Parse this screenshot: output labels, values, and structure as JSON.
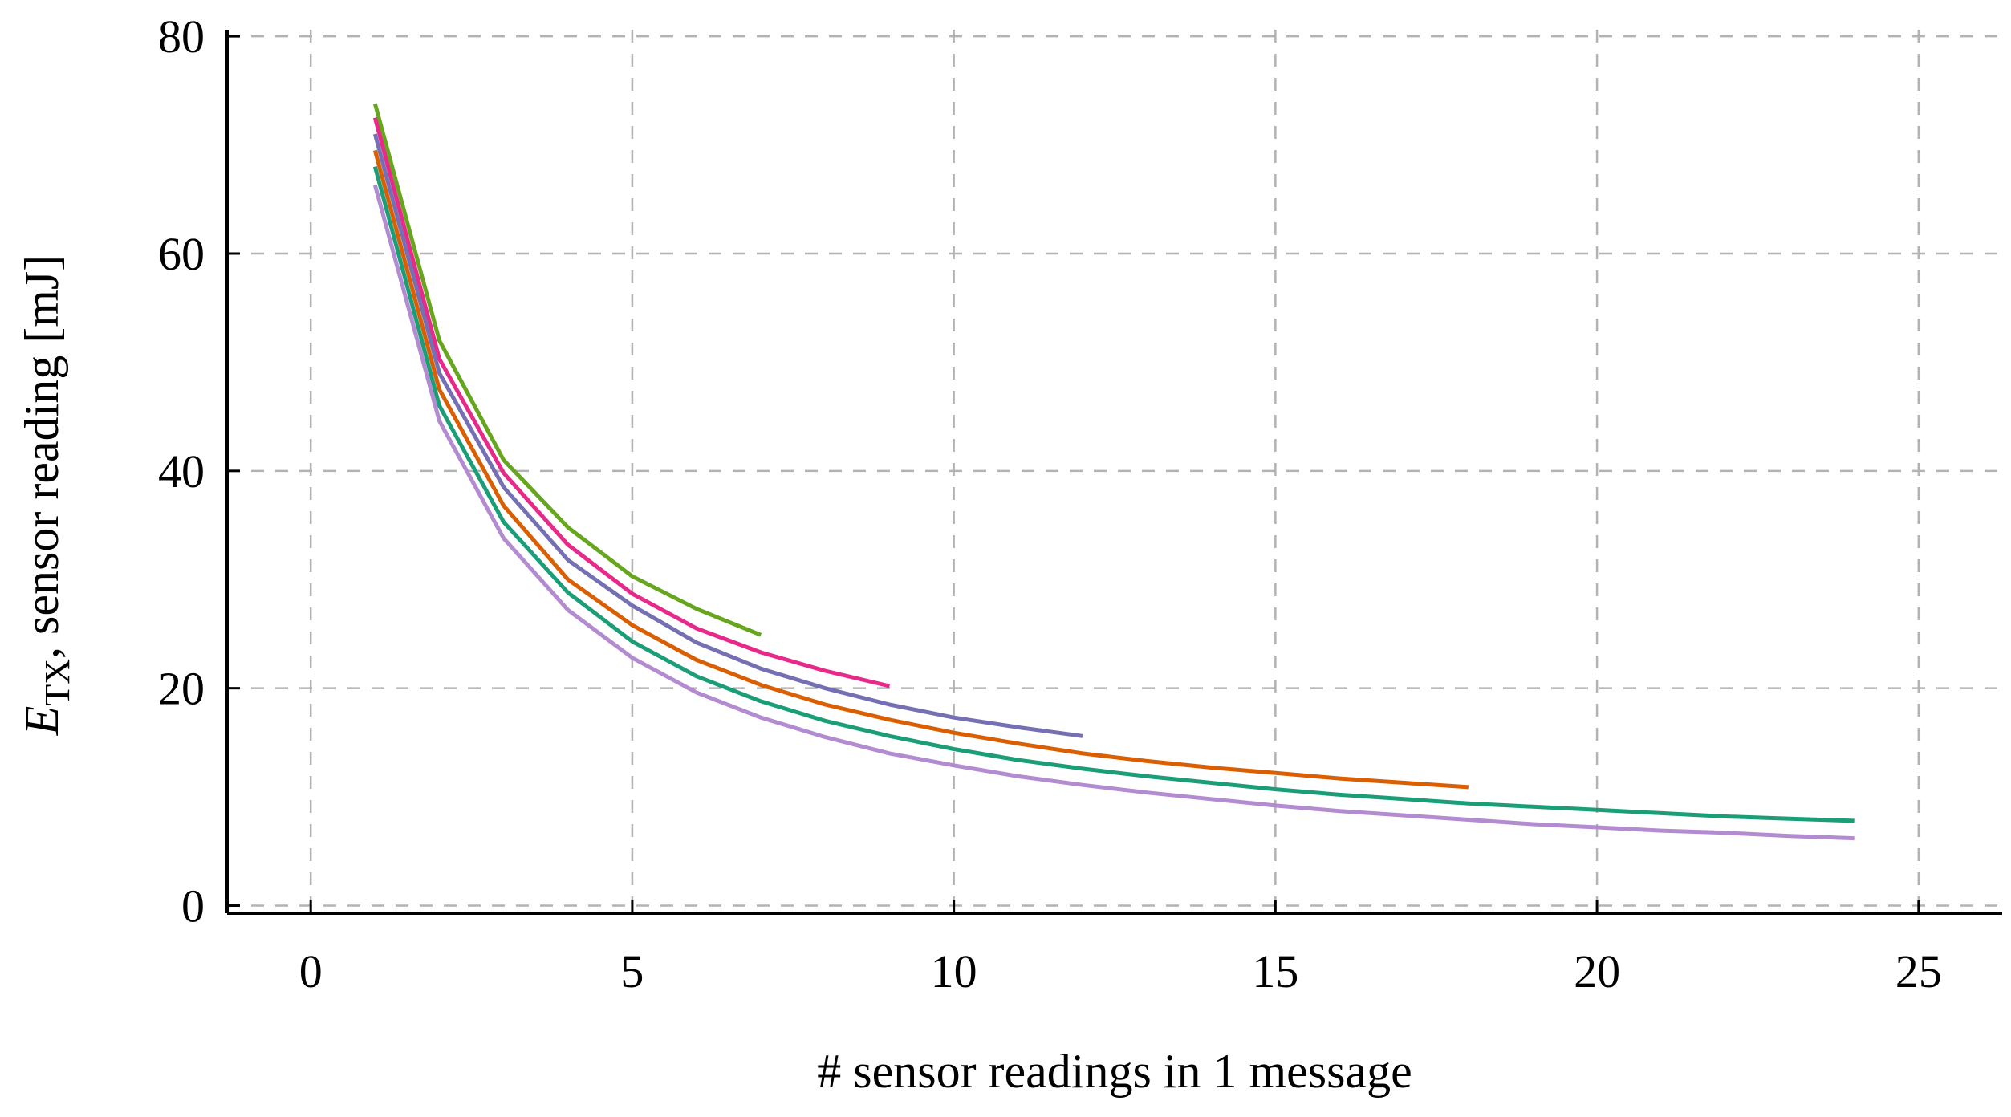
{
  "chart_data": {
    "type": "line",
    "title": "",
    "xlabel": "# sensor readings in 1 message",
    "ylabel_main": "E",
    "ylabel_sub": "TX",
    "ylabel_rest": ", sensor reading [mJ]",
    "xlim": [
      -1.3,
      26.3
    ],
    "ylim": [
      -0.7,
      80.6
    ],
    "xticks": [
      0,
      5,
      10,
      15,
      20,
      25
    ],
    "yticks": [
      0,
      20,
      40,
      60,
      80
    ],
    "grid": true,
    "legend": "none",
    "series": [
      {
        "color": "#66a61e",
        "x": [
          1,
          2,
          3,
          4,
          5,
          6,
          7
        ],
        "y": [
          73.8,
          52.0,
          41.0,
          34.8,
          30.3,
          27.3,
          24.9
        ]
      },
      {
        "color": "#e7298a",
        "x": [
          1,
          2,
          3,
          4,
          5,
          6,
          7,
          8,
          9
        ],
        "y": [
          72.5,
          50.3,
          39.8,
          33.2,
          28.7,
          25.5,
          23.3,
          21.6,
          20.2
        ]
      },
      {
        "color": "#7570b3",
        "x": [
          1,
          2,
          3,
          4,
          5,
          6,
          7,
          8,
          9,
          10,
          11,
          12
        ],
        "y": [
          71.0,
          49.0,
          38.5,
          31.8,
          27.6,
          24.2,
          21.8,
          20.0,
          18.5,
          17.3,
          16.4,
          15.6
        ]
      },
      {
        "color": "#d95f02",
        "x": [
          1,
          2,
          3,
          4,
          5,
          6,
          7,
          8,
          9,
          10,
          11,
          12,
          13,
          14,
          15,
          16,
          17,
          18
        ],
        "y": [
          69.5,
          47.5,
          36.8,
          30.0,
          25.8,
          22.6,
          20.3,
          18.5,
          17.1,
          15.9,
          14.9,
          14.0,
          13.3,
          12.7,
          12.2,
          11.7,
          11.3,
          10.9
        ]
      },
      {
        "color": "#1b9e77",
        "x": [
          1,
          2,
          3,
          4,
          5,
          6,
          7,
          8,
          9,
          10,
          11,
          12,
          13,
          14,
          15,
          16,
          17,
          18,
          19,
          20,
          21,
          22,
          23,
          24
        ],
        "y": [
          68.0,
          46.0,
          35.3,
          28.8,
          24.3,
          21.1,
          18.8,
          17.0,
          15.6,
          14.4,
          13.4,
          12.6,
          11.9,
          11.3,
          10.7,
          10.2,
          9.8,
          9.4,
          9.1,
          8.8,
          8.5,
          8.2,
          8.0,
          7.8
        ]
      },
      {
        "color": "#b28bd0",
        "x": [
          1,
          2,
          3,
          4,
          5,
          6,
          7,
          8,
          9,
          10,
          11,
          12,
          13,
          14,
          15,
          16,
          17,
          18,
          19,
          20,
          21,
          22,
          23,
          24
        ],
        "y": [
          66.3,
          44.6,
          33.8,
          27.2,
          22.8,
          19.6,
          17.3,
          15.5,
          14.0,
          12.9,
          11.9,
          11.1,
          10.4,
          9.8,
          9.2,
          8.7,
          8.3,
          7.9,
          7.5,
          7.2,
          6.9,
          6.7,
          6.4,
          6.2
        ]
      }
    ]
  }
}
